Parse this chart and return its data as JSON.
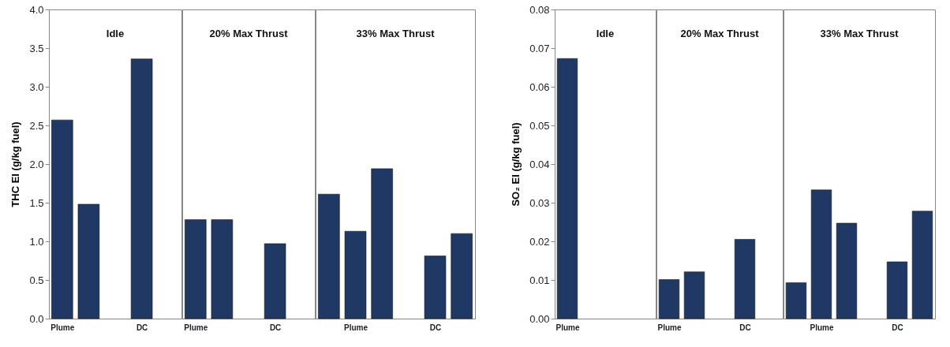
{
  "chart_data": [
    {
      "type": "bar",
      "ylabel": "THC EI (g/kg fuel)",
      "color": "#203864",
      "categories": [
        "Plume",
        null,
        null,
        "DC",
        null
      ],
      "values": [
        2.57,
        1.48,
        null,
        3.36,
        null
      ],
      "ylim": [
        0,
        4
      ],
      "yticks": [
        {
          "value": 0,
          "label": "0.0"
        },
        {
          "value": 0.5,
          "label": "0.5"
        },
        {
          "value": 1,
          "label": "1.0"
        },
        {
          "value": 1.5,
          "label": "1.5"
        },
        {
          "value": 2,
          "label": "2.0"
        },
        {
          "value": 2.5,
          "label": "2.5"
        },
        {
          "value": 3,
          "label": "3.0"
        },
        {
          "value": 3.5,
          "label": "3.5"
        },
        {
          "value": 4,
          "label": "4.0"
        }
      ],
      "annotations": [
        "Idle"
      ],
      "grid": false
    },
    {
      "type": "bar",
      "color": "#203864",
      "categories": [
        "Plume",
        null,
        null,
        "DC",
        null
      ],
      "values": [
        1.28,
        1.28,
        null,
        0.97,
        null
      ],
      "ylim": [
        0,
        4
      ],
      "tick_labels": "x",
      "annotations": [
        "20% Max Thrust"
      ],
      "grid": false
    },
    {
      "type": "bar",
      "color": "#203864",
      "categories": [
        null,
        "Plume",
        null,
        null,
        "DC",
        null
      ],
      "values": [
        1.61,
        1.13,
        1.94,
        null,
        0.81,
        1.1
      ],
      "ylim": [
        0,
        4
      ],
      "tick_labels": "x",
      "annotations": [
        "33% Max Thrust"
      ],
      "grid": false
    },
    {
      "type": "bar",
      "ylabel": "SO₂ EI (g/kg fuel)",
      "color": "#203864",
      "categories": [
        "Plume",
        null,
        null,
        null
      ],
      "values": [
        0.0673,
        null,
        null,
        null
      ],
      "ylim": [
        0,
        0.08
      ],
      "yticks": [
        {
          "value": 0,
          "label": "0.00"
        },
        {
          "value": 0.01,
          "label": "0.01"
        },
        {
          "value": 0.02,
          "label": "0.02"
        },
        {
          "value": 0.03,
          "label": "0.03"
        },
        {
          "value": 0.04,
          "label": "0.04"
        },
        {
          "value": 0.05,
          "label": "0.05"
        },
        {
          "value": 0.06,
          "label": "0.06"
        },
        {
          "value": 0.07,
          "label": "0.07"
        },
        {
          "value": 0.08,
          "label": "0.08"
        }
      ],
      "annotations": [
        "Idle"
      ],
      "grid": false
    },
    {
      "type": "bar",
      "color": "#203864",
      "categories": [
        "Plume",
        null,
        null,
        "DC",
        null
      ],
      "values": [
        0.0101,
        0.0121,
        null,
        0.0205,
        null
      ],
      "ylim": [
        0,
        0.08
      ],
      "tick_labels": "x",
      "annotations": [
        "20% Max Thrust"
      ],
      "grid": false
    },
    {
      "type": "bar",
      "color": "#203864",
      "categories": [
        null,
        "Plume",
        null,
        null,
        "DC",
        null
      ],
      "values": [
        0.0093,
        0.0333,
        0.0247,
        null,
        0.0147,
        0.0278
      ],
      "ylim": [
        0,
        0.08
      ],
      "tick_labels": "x",
      "annotations": [
        "33% Max Thrust"
      ],
      "grid": false
    }
  ]
}
